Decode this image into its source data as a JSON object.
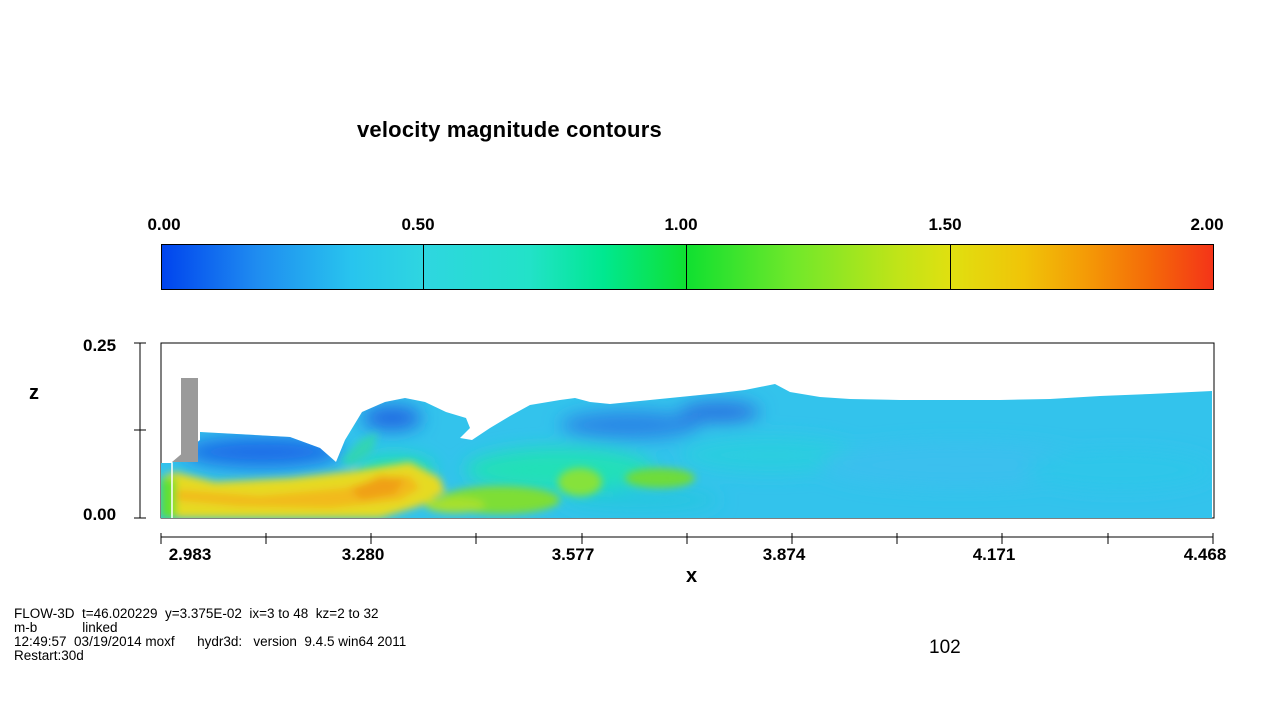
{
  "chart_data": {
    "type": "heatmap",
    "title": "velocity magnitude contours",
    "colorbar": {
      "ticks": [
        "0.00",
        "0.50",
        "1.00",
        "1.50",
        "2.00"
      ],
      "range": [
        0,
        2.0
      ],
      "colors": [
        "#0044ee",
        "#28c4ee",
        "#10e030",
        "#e0e010",
        "#f43418"
      ]
    },
    "xlabel": "x",
    "ylabel": "z",
    "x_ticks": [
      "2.983",
      "3.280",
      "3.577",
      "3.874",
      "4.171",
      "4.468"
    ],
    "x_range": [
      2.983,
      4.468
    ],
    "y_ticks": [
      "0.25",
      "0.00"
    ],
    "y_range": [
      0.0,
      0.25
    ]
  },
  "footer": {
    "line1": "FLOW-3D  t=46.020229  y=3.375E-02  ix=3 to 48  kz=2 to 32",
    "line2": "m-b            linked",
    "line3": "12:49:57  03/19/2014 moxf      hydr3d:   version  9.4.5 win64 2011",
    "line4": "Restart:30d"
  },
  "frame_number": "102"
}
